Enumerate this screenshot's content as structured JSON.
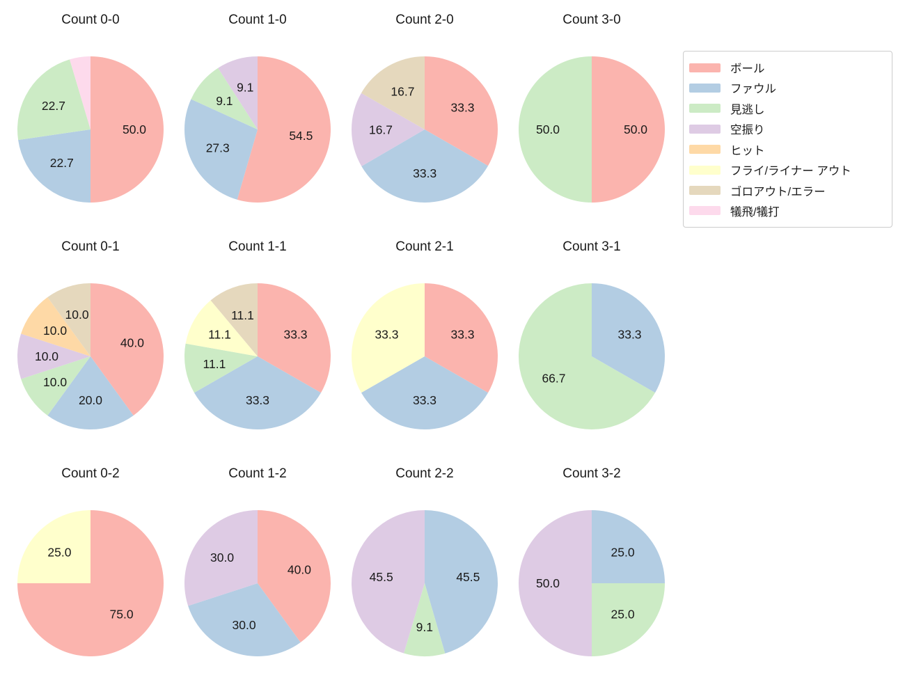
{
  "figure": {
    "background": "#ffffff",
    "palette": {
      "ball": "#fbb4ae",
      "foul": "#b3cde3",
      "called_strike": "#ccebc5",
      "swinging_strike": "#decbe4",
      "hit": "#fed9a6",
      "fly_liner_out": "#ffffcc",
      "groundout_error": "#e5d8bd",
      "sac_fly_bunt": "#fddaec"
    }
  },
  "legend": {
    "position": "top-right",
    "items": [
      {
        "label": "ボール",
        "color": "#fbb4ae"
      },
      {
        "label": "ファウル",
        "color": "#b3cde3"
      },
      {
        "label": "見逃し",
        "color": "#ccebc5"
      },
      {
        "label": "空振り",
        "color": "#decbe4"
      },
      {
        "label": "ヒット",
        "color": "#fed9a6"
      },
      {
        "label": "フライ/ライナー アウト",
        "color": "#ffffcc"
      },
      {
        "label": "ゴロアウト/エラー",
        "color": "#e5d8bd"
      },
      {
        "label": "犠飛/犠打",
        "color": "#fddaec"
      }
    ]
  },
  "chart_data": [
    {
      "type": "pie",
      "title": "Count 0-0",
      "start_angle": "top",
      "direction": "clockwise",
      "unit": "percent",
      "slices": [
        {
          "label": "ボール",
          "pct": 50.0,
          "text": "50.0",
          "color": "#fbb4ae"
        },
        {
          "label": "ファウル",
          "pct": 22.7,
          "text": "22.7",
          "color": "#b3cde3"
        },
        {
          "label": "見逃し",
          "pct": 22.7,
          "text": "22.7",
          "color": "#ccebc5"
        },
        {
          "label": "犠飛/犠打",
          "pct": 4.6,
          "text": "",
          "color": "#fddaec"
        }
      ]
    },
    {
      "type": "pie",
      "title": "Count 1-0",
      "start_angle": "top",
      "direction": "clockwise",
      "unit": "percent",
      "slices": [
        {
          "label": "ボール",
          "pct": 54.5,
          "text": "54.5",
          "color": "#fbb4ae"
        },
        {
          "label": "ファウル",
          "pct": 27.3,
          "text": "27.3",
          "color": "#b3cde3"
        },
        {
          "label": "見逃し",
          "pct": 9.1,
          "text": "9.1",
          "color": "#ccebc5"
        },
        {
          "label": "空振り",
          "pct": 9.1,
          "text": "9.1",
          "color": "#decbe4"
        }
      ]
    },
    {
      "type": "pie",
      "title": "Count 2-0",
      "start_angle": "top",
      "direction": "clockwise",
      "unit": "percent",
      "slices": [
        {
          "label": "ボール",
          "pct": 33.3,
          "text": "33.3",
          "color": "#fbb4ae"
        },
        {
          "label": "ファウル",
          "pct": 33.3,
          "text": "33.3",
          "color": "#b3cde3"
        },
        {
          "label": "空振り",
          "pct": 16.7,
          "text": "16.7",
          "color": "#decbe4"
        },
        {
          "label": "ゴロアウト/エラー",
          "pct": 16.7,
          "text": "16.7",
          "color": "#e5d8bd"
        }
      ]
    },
    {
      "type": "pie",
      "title": "Count 3-0",
      "start_angle": "top",
      "direction": "clockwise",
      "unit": "percent",
      "slices": [
        {
          "label": "ボール",
          "pct": 50.0,
          "text": "50.0",
          "color": "#fbb4ae"
        },
        {
          "label": "見逃し",
          "pct": 50.0,
          "text": "50.0",
          "color": "#ccebc5"
        }
      ]
    },
    {
      "type": "pie",
      "title": "Count 0-1",
      "start_angle": "top",
      "direction": "clockwise",
      "unit": "percent",
      "slices": [
        {
          "label": "ボール",
          "pct": 40.0,
          "text": "40.0",
          "color": "#fbb4ae"
        },
        {
          "label": "ファウル",
          "pct": 20.0,
          "text": "20.0",
          "color": "#b3cde3"
        },
        {
          "label": "見逃し",
          "pct": 10.0,
          "text": "10.0",
          "color": "#ccebc5"
        },
        {
          "label": "空振り",
          "pct": 10.0,
          "text": "10.0",
          "color": "#decbe4"
        },
        {
          "label": "ヒット",
          "pct": 10.0,
          "text": "10.0",
          "color": "#fed9a6"
        },
        {
          "label": "ゴロアウト/エラー",
          "pct": 10.0,
          "text": "10.0",
          "color": "#e5d8bd"
        }
      ]
    },
    {
      "type": "pie",
      "title": "Count 1-1",
      "start_angle": "top",
      "direction": "clockwise",
      "unit": "percent",
      "slices": [
        {
          "label": "ボール",
          "pct": 33.3,
          "text": "33.3",
          "color": "#fbb4ae"
        },
        {
          "label": "ファウル",
          "pct": 33.4,
          "text": "33.3",
          "color": "#b3cde3"
        },
        {
          "label": "見逃し",
          "pct": 11.1,
          "text": "11.1",
          "color": "#ccebc5"
        },
        {
          "label": "フライ/ライナー アウト",
          "pct": 11.1,
          "text": "11.1",
          "color": "#ffffcc"
        },
        {
          "label": "ゴロアウト/エラー",
          "pct": 11.1,
          "text": "11.1",
          "color": "#e5d8bd"
        }
      ]
    },
    {
      "type": "pie",
      "title": "Count 2-1",
      "start_angle": "top",
      "direction": "clockwise",
      "unit": "percent",
      "slices": [
        {
          "label": "ボール",
          "pct": 33.3,
          "text": "33.3",
          "color": "#fbb4ae"
        },
        {
          "label": "ファウル",
          "pct": 33.4,
          "text": "33.3",
          "color": "#b3cde3"
        },
        {
          "label": "フライ/ライナー アウト",
          "pct": 33.3,
          "text": "33.3",
          "color": "#ffffcc"
        }
      ]
    },
    {
      "type": "pie",
      "title": "Count 3-1",
      "start_angle": "top",
      "direction": "clockwise",
      "unit": "percent",
      "slices": [
        {
          "label": "ファウル",
          "pct": 33.3,
          "text": "33.3",
          "color": "#b3cde3"
        },
        {
          "label": "見逃し",
          "pct": 66.7,
          "text": "66.7",
          "color": "#ccebc5"
        }
      ]
    },
    {
      "type": "pie",
      "title": "Count 0-2",
      "start_angle": "top",
      "direction": "clockwise",
      "unit": "percent",
      "slices": [
        {
          "label": "ボール",
          "pct": 75.0,
          "text": "75.0",
          "color": "#fbb4ae"
        },
        {
          "label": "フライ/ライナー アウト",
          "pct": 25.0,
          "text": "25.0",
          "color": "#ffffcc"
        }
      ]
    },
    {
      "type": "pie",
      "title": "Count 1-2",
      "start_angle": "top",
      "direction": "clockwise",
      "unit": "percent",
      "slices": [
        {
          "label": "ボール",
          "pct": 40.0,
          "text": "40.0",
          "color": "#fbb4ae"
        },
        {
          "label": "ファウル",
          "pct": 30.0,
          "text": "30.0",
          "color": "#b3cde3"
        },
        {
          "label": "空振り",
          "pct": 30.0,
          "text": "30.0",
          "color": "#decbe4"
        }
      ]
    },
    {
      "type": "pie",
      "title": "Count 2-2",
      "start_angle": "top",
      "direction": "clockwise",
      "unit": "percent",
      "slices": [
        {
          "label": "ファウル",
          "pct": 45.5,
          "text": "45.5",
          "color": "#b3cde3"
        },
        {
          "label": "見逃し",
          "pct": 9.1,
          "text": "9.1",
          "color": "#ccebc5"
        },
        {
          "label": "空振り",
          "pct": 45.4,
          "text": "45.5",
          "color": "#decbe4"
        }
      ]
    },
    {
      "type": "pie",
      "title": "Count 3-2",
      "start_angle": "top",
      "direction": "clockwise",
      "unit": "percent",
      "slices": [
        {
          "label": "ファウル",
          "pct": 25.0,
          "text": "25.0",
          "color": "#b3cde3"
        },
        {
          "label": "見逃し",
          "pct": 25.0,
          "text": "25.0",
          "color": "#ccebc5"
        },
        {
          "label": "空振り",
          "pct": 50.0,
          "text": "50.0",
          "color": "#decbe4"
        }
      ]
    }
  ]
}
